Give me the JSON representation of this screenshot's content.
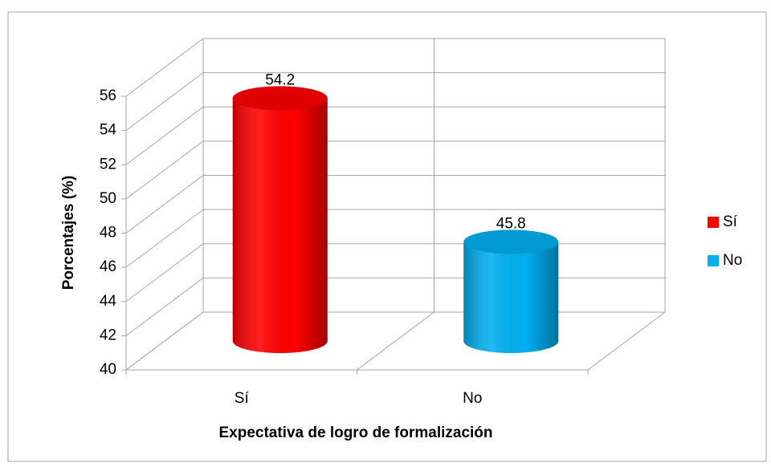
{
  "chart_data": {
    "type": "bar3d",
    "xlabel": "Expectativa de logro de formalización",
    "ylabel": "Porcentajes (%)",
    "categories": [
      "Sí",
      "No"
    ],
    "values": [
      54.2,
      45.8
    ],
    "colors": [
      "#ff0000",
      "#00b0f0"
    ],
    "ylim": [
      40,
      56
    ],
    "yticks": [
      40,
      42,
      44,
      46,
      48,
      50,
      52,
      54,
      56
    ],
    "grid": true,
    "legend": "right"
  }
}
